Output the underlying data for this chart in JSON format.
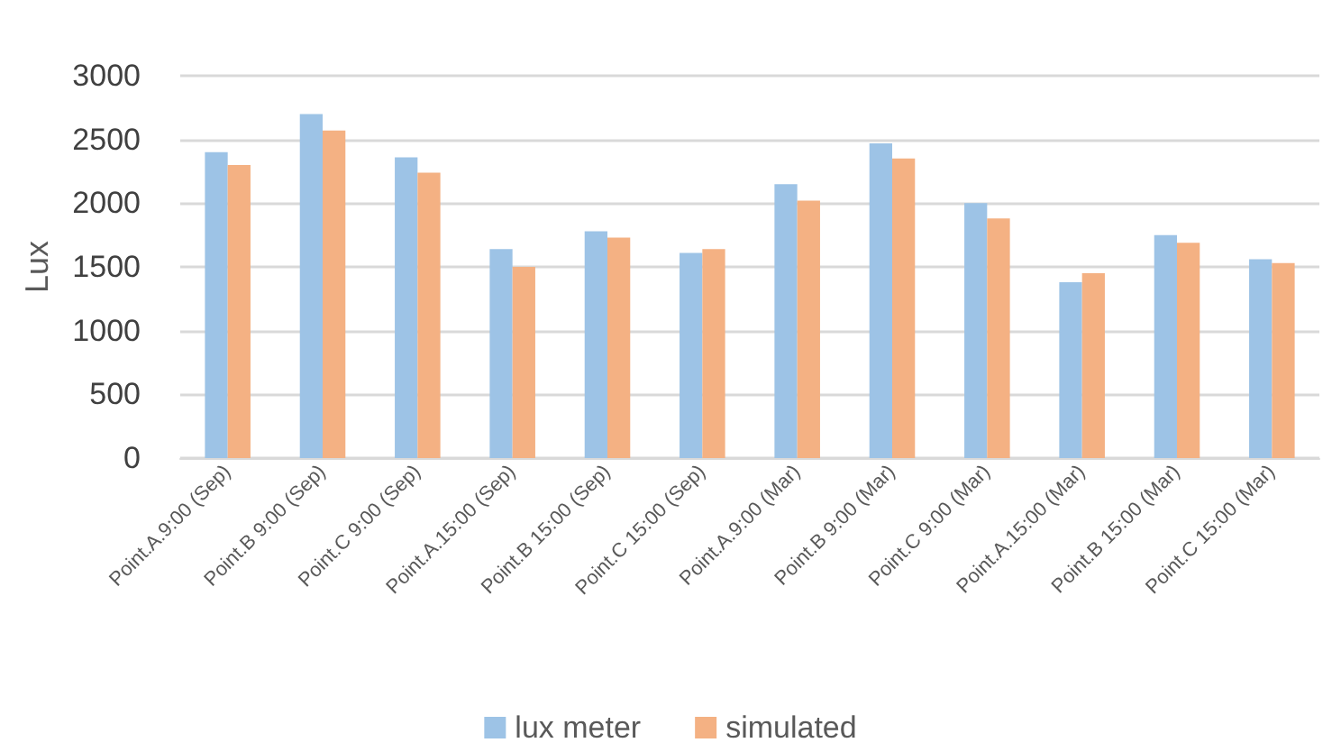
{
  "chart_data": {
    "type": "bar",
    "ylabel": "Lux",
    "categories": [
      "Point.A.9:00 (Sep)",
      "Point.B 9:00 (Sep)",
      "Point.C 9:00 (Sep)",
      "Point.A.15:00 (Sep)",
      "Point.B 15:00 (Sep)",
      "Point.C 15:00 (Sep)",
      "Point.A.9:00 (Mar)",
      "Point.B 9:00 (Mar)",
      "Point.C 9:00 (Mar)",
      "Point.A.15:00 (Mar)",
      "Point.B 15:00 (Mar)",
      "Point.C 15:00 (Mar)"
    ],
    "series": [
      {
        "name": "lux meter",
        "color": "#9dc3e6",
        "values": [
          2400,
          2700,
          2360,
          1640,
          1780,
          1610,
          2150,
          2470,
          2000,
          1380,
          1750,
          1560
        ]
      },
      {
        "name": "simulated",
        "color": "#f4b183",
        "values": [
          2300,
          2570,
          2240,
          1500,
          1730,
          1640,
          2020,
          2350,
          1880,
          1450,
          1690,
          1530
        ]
      }
    ],
    "ylim": [
      0,
      3000
    ],
    "yticks": [
      0,
      500,
      1000,
      1500,
      2000,
      2500,
      3000
    ],
    "grid": "y",
    "legend": "bottom"
  }
}
